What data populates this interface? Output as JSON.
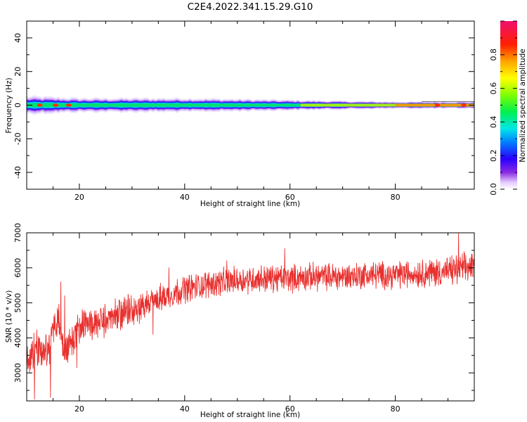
{
  "figure": {
    "title": "C2E4.2022.341.15.29.G10"
  },
  "chart_data": [
    {
      "type": "heatmap",
      "xlabel": "Height of straight line (km)",
      "ylabel": "Frequency (Hz)",
      "xlim": [
        10,
        95
      ],
      "ylim": [
        -50,
        50
      ],
      "xticks": [
        20,
        40,
        60,
        80
      ],
      "yticks": [
        40,
        20,
        0,
        -20,
        -40
      ],
      "ytick_labels": [
        "40",
        "20",
        "0",
        "-20",
        "-40"
      ],
      "colorbar": {
        "label": "Normalized spectral amplitude",
        "range": [
          0,
          1
        ],
        "ticks": [
          0.0,
          0.2,
          0.4,
          0.6,
          0.8
        ],
        "tick_labels": [
          "0.0",
          "0.2",
          "0.4",
          "0.6",
          "0.8"
        ],
        "colormap": "rainbow (white-violet-blue-cyan-green-yellow-orange-red-magenta)"
      },
      "band": {
        "description": "narrow spectral band centered near 0 Hz",
        "center_hz": 0,
        "halfwidth_hz": [
          [
            11,
            5
          ],
          [
            20,
            4
          ],
          [
            40,
            4
          ],
          [
            60,
            3
          ],
          [
            80,
            2
          ],
          [
            95,
            2
          ]
        ],
        "hot_spots_km": [
          12.5,
          15.5,
          18,
          88,
          93
        ]
      },
      "grid": false
    },
    {
      "type": "line",
      "xlabel": "Height of straight line (km)",
      "ylabel": "SNR (10 * v/v)",
      "xlim": [
        10,
        95
      ],
      "ylim": [
        2200,
        7000
      ],
      "xticks": [
        20,
        40,
        60,
        80
      ],
      "yticks": [
        3000,
        4000,
        5000,
        6000,
        7000
      ],
      "series": [
        {
          "color": "#e8302e",
          "trend_x": [
            10,
            12,
            14,
            16,
            17,
            20,
            25,
            30,
            35,
            40,
            45,
            50,
            55,
            60,
            65,
            70,
            75,
            80,
            85,
            90,
            95
          ],
          "trend_y": [
            3400,
            3700,
            3600,
            4700,
            3600,
            4300,
            4500,
            4800,
            5100,
            5400,
            5550,
            5650,
            5700,
            5700,
            5750,
            5750,
            5800,
            5800,
            5850,
            5900,
            6050
          ],
          "noise_amplitude": [
            [
              10,
              600
            ],
            [
              20,
              550
            ],
            [
              40,
              450
            ],
            [
              60,
              450
            ],
            [
              80,
              450
            ],
            [
              95,
              500
            ]
          ],
          "notable_peaks": [
            [
              16.5,
              5600
            ],
            [
              17.2,
              5200
            ],
            [
              37,
              6000
            ],
            [
              48,
              6200
            ],
            [
              59,
              6550
            ],
            [
              92,
              7000
            ]
          ],
          "notable_dips": [
            [
              11.5,
              2250
            ],
            [
              14.5,
              2300
            ],
            [
              19.5,
              3150
            ],
            [
              34,
              4100
            ]
          ]
        }
      ],
      "grid": false
    }
  ],
  "colors": {
    "line": "#e8302e",
    "axes": "#000000",
    "background": "#ffffff"
  }
}
